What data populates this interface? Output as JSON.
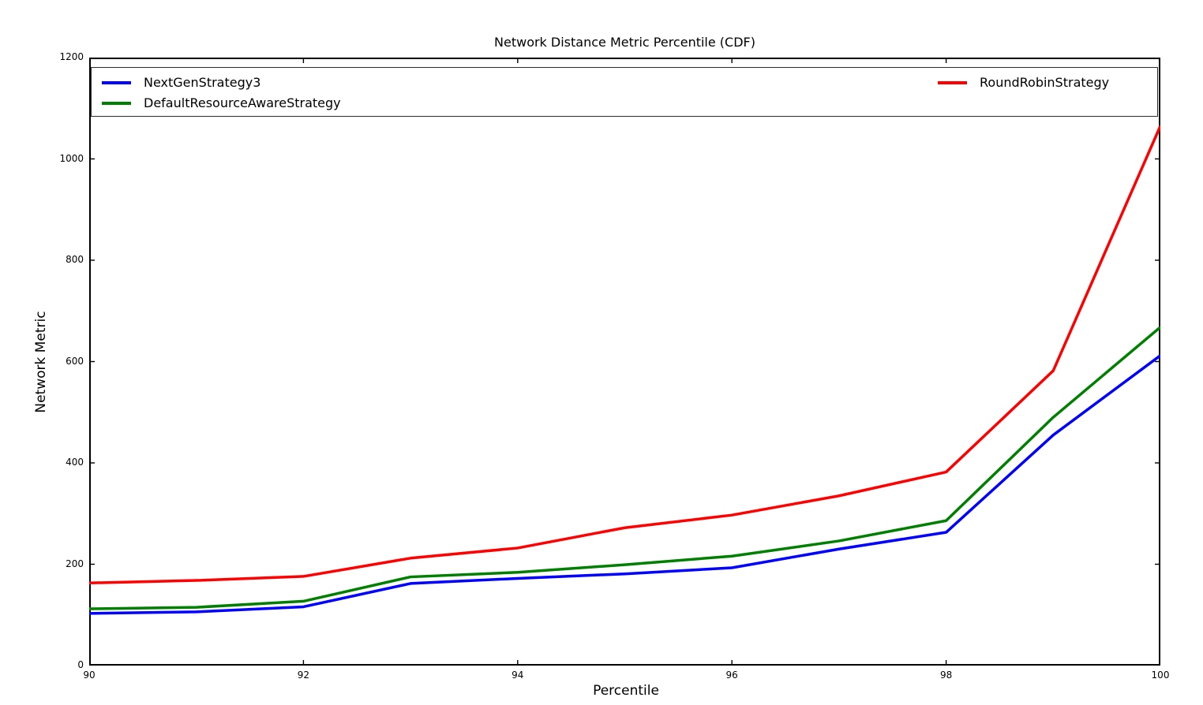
{
  "chart_data": {
    "type": "line",
    "title": "Network Distance Metric Percentile (CDF)",
    "xlabel": "Percentile",
    "ylabel": "Network Metric",
    "x": [
      90,
      91,
      92,
      93,
      94,
      95,
      96,
      97,
      98,
      99,
      100
    ],
    "series": [
      {
        "name": "NextGenStrategy3",
        "color": "#0000ff",
        "values": [
          103,
          106,
          116,
          162,
          172,
          181,
          193,
          230,
          263,
          455,
          612
        ]
      },
      {
        "name": "DefaultResourceAwareStrategy",
        "color": "#008000",
        "values": [
          112,
          115,
          127,
          175,
          184,
          199,
          216,
          246,
          286,
          490,
          668
        ]
      },
      {
        "name": "RoundRobinStrategy",
        "color": "#ff0000",
        "values": [
          163,
          168,
          176,
          212,
          232,
          272,
          297,
          335,
          382,
          582,
          1065
        ]
      }
    ],
    "xlim": [
      90,
      100
    ],
    "ylim": [
      0,
      1200
    ],
    "xticks": [
      90,
      92,
      94,
      96,
      98,
      100
    ],
    "yticks": [
      0,
      200,
      400,
      600,
      800,
      1000,
      1200
    ],
    "grid": false,
    "legend_position": "upper inside, full-width box, 2 columns",
    "line_width": 3.5,
    "axis_color": "#000000",
    "background": "#ffffff"
  }
}
